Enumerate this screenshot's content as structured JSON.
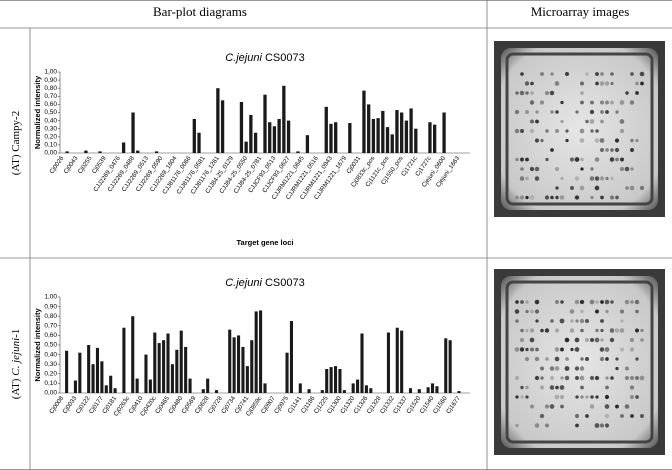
{
  "header": {
    "columns": [
      "Bar-plot diagrams",
      "Microarray images"
    ]
  },
  "rows": [
    [
      "(AT) Campy-2"
    ],
    [
      "(AT) ",
      "C. jejuni",
      "-1"
    ]
  ],
  "chart_data": [
    {
      "type": "bar",
      "title": [
        "C.jejuni",
        "CS0073"
      ],
      "y_label": "Normalized intensity",
      "x_label": "Target gene loci",
      "color": "#1a1a1a",
      "ylim": [
        0,
        1
      ],
      "yticks": [
        {
          "value": 0,
          "label": "0,00"
        },
        {
          "value": 0.1,
          "label": "0,10"
        },
        {
          "value": 0.2,
          "label": "0,20"
        },
        {
          "value": 0.3,
          "label": "0,30"
        },
        {
          "value": 0.4,
          "label": "0,40"
        },
        {
          "value": 0.5,
          "label": "0,50"
        },
        {
          "value": 0.6,
          "label": "0,60"
        },
        {
          "value": 0.7,
          "label": "0,70"
        },
        {
          "value": 0.8,
          "label": "0,80"
        },
        {
          "value": 0.9,
          "label": "0,90"
        },
        {
          "value": 1,
          "label": "1,00"
        }
      ],
      "categories": [
        "Cj0026",
        null,
        null,
        "Cj0043",
        null,
        null,
        "Cj0255",
        null,
        null,
        "Cj0539",
        null,
        null,
        "CJJ2269_0476",
        null,
        null,
        "CJJ2269_0488",
        null,
        null,
        "CJJ2269_0513",
        null,
        null,
        "CJJ2269_0590",
        null,
        null,
        "CJJ2269_1604",
        null,
        null,
        "CJJ81176_0066",
        null,
        null,
        "CJJ81176_0581",
        null,
        null,
        "CJJ81176_1261",
        null,
        null,
        "CJJ84-25_0129",
        null,
        null,
        "CJJ84-25_0550",
        null,
        null,
        "CJJ84-25_0781",
        null,
        null,
        "CJJCF93_0513",
        null,
        null,
        "CJJCF93_0627",
        null,
        null,
        "CJJRM1221_0645",
        null,
        null,
        "CJJRM1221_0516",
        null,
        null,
        "CJJRM1221_0943",
        null,
        null,
        "CJJRM1221_1679",
        null,
        null,
        "Cj0031",
        null,
        null,
        "Cj0833c_pos",
        null,
        null,
        "Cj1121c_pos",
        null,
        null,
        "Cj1550_pos",
        null,
        null,
        "Cj1721c",
        null,
        null,
        "Cj1727c",
        null,
        null,
        "Cjejuni_0600",
        null,
        null,
        "Cjejuni_1663",
        null,
        null
      ],
      "values": [
        0,
        0.02,
        0,
        0,
        0,
        0.03,
        0,
        0,
        0.02,
        0,
        0,
        0,
        0,
        0.13,
        0,
        0.5,
        0.03,
        0,
        0,
        0,
        0.02,
        0,
        0,
        0,
        0,
        0,
        0,
        0,
        0.42,
        0.25,
        0,
        0,
        0,
        0.8,
        0.65,
        0,
        0,
        0,
        0.63,
        0.14,
        0.47,
        0.25,
        0,
        0.72,
        0.38,
        0.33,
        0.42,
        0.83,
        0.4,
        0,
        0.02,
        0,
        0.22,
        0,
        0,
        0,
        0.57,
        0.36,
        0.38,
        0,
        0,
        0.37,
        0,
        0,
        0.77,
        0.6,
        0.42,
        0.43,
        0.52,
        0.32,
        0.23,
        0.53,
        0.5,
        0.4,
        0.55,
        0.3,
        0,
        0,
        0.38,
        0.35,
        0,
        0.5,
        0,
        0,
        0,
        0,
        0
      ]
    },
    {
      "type": "bar",
      "title": [
        "C.jejuni",
        "CS0073"
      ],
      "y_label": "Normalized intensity",
      "color": "#1a1a1a",
      "ylim": [
        0,
        1
      ],
      "yticks": [
        {
          "value": 0,
          "label": "0,00"
        },
        {
          "value": 0.1,
          "label": "0,10"
        },
        {
          "value": 0.2,
          "label": "0,20"
        },
        {
          "value": 0.3,
          "label": "0,30"
        },
        {
          "value": 0.4,
          "label": "0,40"
        },
        {
          "value": 0.5,
          "label": "0,50"
        },
        {
          "value": 0.6,
          "label": "0,60"
        },
        {
          "value": 0.7,
          "label": "0,70"
        },
        {
          "value": 0.8,
          "label": "0,80"
        },
        {
          "value": 0.9,
          "label": "0,90"
        },
        {
          "value": 1,
          "label": "1,00"
        }
      ],
      "categories": [
        "Cj0008",
        null,
        null,
        "Cj0033",
        null,
        null,
        "Cj0122",
        null,
        null,
        "Cj0177",
        null,
        null,
        "Cj0181",
        null,
        null,
        "Cj0263c",
        null,
        null,
        "Cj0410",
        null,
        null,
        "Cj0420c",
        null,
        null,
        "Cj0465",
        null,
        null,
        "Cj0480",
        null,
        null,
        "Cj0569",
        null,
        null,
        "Cj0628",
        null,
        null,
        "Cj0728",
        null,
        null,
        "Cj0734",
        null,
        null,
        "Cj0741",
        null,
        null,
        "Cj0859c",
        null,
        null,
        "Cj0907",
        null,
        null,
        "Cj0975",
        null,
        null,
        "Cj1141",
        null,
        null,
        "Cj1186",
        null,
        null,
        "Cj1225",
        null,
        null,
        "Cj1300",
        null,
        null,
        "Cj1320",
        null,
        null,
        "Cj1326",
        null,
        null,
        "Cj1328",
        null,
        null,
        "Cj1332",
        null,
        null,
        "Cj1337",
        null,
        null,
        "Cj1520",
        null,
        null,
        "Cj1540",
        null,
        null,
        "Cj1560",
        null,
        null,
        "Cj1677",
        null,
        null
      ],
      "values": [
        0,
        0.44,
        0,
        0.13,
        0.42,
        0,
        0.5,
        0.3,
        0.47,
        0.33,
        0.08,
        0.18,
        0.05,
        0,
        0.68,
        0,
        0.8,
        0.15,
        0,
        0.4,
        0.14,
        0.63,
        0.52,
        0.55,
        0.62,
        0.3,
        0.45,
        0.65,
        0.48,
        0.15,
        0,
        0,
        0.04,
        0.15,
        0,
        0.03,
        0,
        0,
        0.66,
        0.58,
        0.6,
        0.48,
        0.28,
        0.55,
        0.85,
        0.86,
        0.1,
        0,
        0,
        0,
        0,
        0.42,
        0.75,
        0,
        0.1,
        0,
        0.04,
        0,
        0,
        0.03,
        0.25,
        0.27,
        0.28,
        0.25,
        0.03,
        0,
        0.1,
        0.14,
        0.62,
        0.08,
        0.05,
        0,
        0,
        0,
        0.63,
        0,
        0.68,
        0.65,
        0,
        0.05,
        0,
        0.04,
        0,
        0.06,
        0.1,
        0.07,
        0,
        0.57,
        0.55,
        0,
        0.02,
        0,
        0
      ]
    }
  ]
}
